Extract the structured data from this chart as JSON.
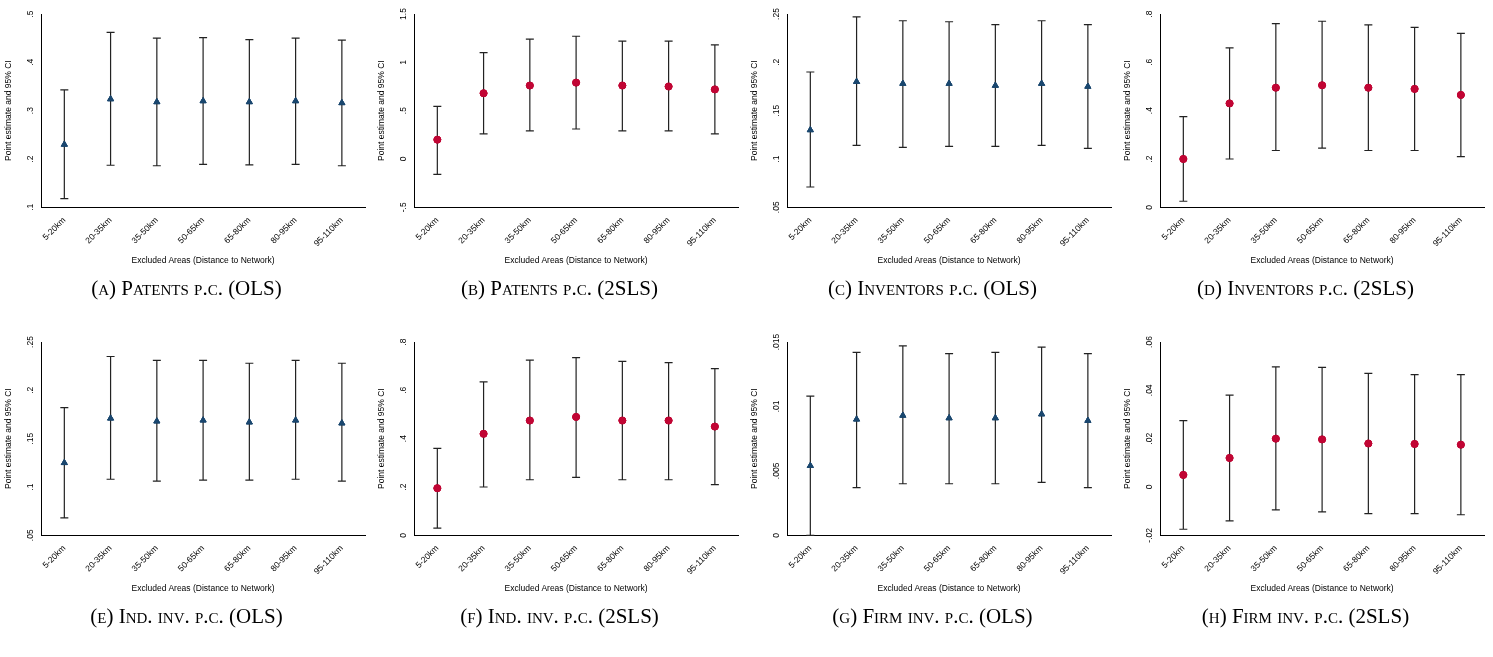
{
  "chart_data": [
    {
      "type": "scatter",
      "title": "(a) Patents p.c. (OLS)",
      "xlabel": "Excluded Areas (Distance to Network)",
      "ylabel": "Point estimate and 95% CI",
      "marker": "triangle",
      "color": "#1a476f",
      "categories": [
        "5-20km",
        "20-35km",
        "35-50km",
        "50-65km",
        "65-80km",
        "80-95km",
        "95-110km"
      ],
      "values": [
        0.23,
        0.324,
        0.318,
        0.32,
        0.318,
        0.32,
        0.316
      ],
      "errors": [
        [
          0.118,
          0.343
        ],
        [
          0.187,
          0.462
        ],
        [
          0.186,
          0.45
        ],
        [
          0.189,
          0.451
        ],
        [
          0.188,
          0.447
        ],
        [
          0.189,
          0.45
        ],
        [
          0.186,
          0.446
        ]
      ],
      "ylim": [
        0.1,
        0.5
      ],
      "yticks": [
        {
          "value": 0.1,
          "label": ".1"
        },
        {
          "value": 0.2,
          "label": ".2"
        },
        {
          "value": 0.3,
          "label": ".3"
        },
        {
          "value": 0.4,
          "label": ".4"
        },
        {
          "value": 0.5,
          "label": ".5"
        }
      ]
    },
    {
      "type": "scatter",
      "title": "(b) Patents p.c. (2SLS)",
      "xlabel": "Excluded Areas (Distance to Network)",
      "ylabel": "Point estimate and 95% CI",
      "marker": "circle",
      "color": "#c10534",
      "categories": [
        "5-20km",
        "20-35km",
        "35-50km",
        "50-65km",
        "65-80km",
        "80-95km",
        "95-110km"
      ],
      "values": [
        0.2,
        0.68,
        0.76,
        0.79,
        0.76,
        0.75,
        0.72
      ],
      "errors": [
        [
          -0.16,
          0.545
        ],
        [
          0.26,
          1.1
        ],
        [
          0.29,
          1.24
        ],
        [
          0.31,
          1.27
        ],
        [
          0.29,
          1.22
        ],
        [
          0.29,
          1.22
        ],
        [
          0.26,
          1.18
        ]
      ],
      "ylim": [
        -0.5,
        1.5
      ],
      "yticks": [
        {
          "value": -0.5,
          "label": "-.5"
        },
        0,
        {
          "value": 0.5,
          "label": ".5"
        },
        1,
        1.5
      ]
    },
    {
      "type": "scatter",
      "title": "(c) Inventors p.c. (OLS)",
      "xlabel": "Excluded Areas (Distance to Network)",
      "ylabel": "Point estimate and 95% CI",
      "marker": "triangle",
      "color": "#1a476f",
      "categories": [
        "5-20km",
        "20-35km",
        "35-50km",
        "50-65km",
        "65-80km",
        "80-95km",
        "95-110km"
      ],
      "values": [
        0.13,
        0.18,
        0.178,
        0.178,
        0.176,
        0.178,
        0.175
      ],
      "errors": [
        [
          0.071,
          0.19
        ],
        [
          0.114,
          0.247
        ],
        [
          0.112,
          0.243
        ],
        [
          0.113,
          0.242
        ],
        [
          0.113,
          0.239
        ],
        [
          0.114,
          0.243
        ],
        [
          0.111,
          0.239
        ]
      ],
      "ylim": [
        0.05,
        0.25
      ],
      "yticks": [
        {
          "value": 0.05,
          "label": ".05"
        },
        {
          "value": 0.1,
          "label": ".1"
        },
        {
          "value": 0.15,
          "label": ".15"
        },
        {
          "value": 0.2,
          "label": ".2"
        },
        {
          "value": 0.25,
          "label": ".25"
        }
      ]
    },
    {
      "type": "scatter",
      "title": "(d) Inventors p.c. (2SLS)",
      "xlabel": "Excluded Areas (Distance to Network)",
      "ylabel": "Point estimate and 95% CI",
      "marker": "circle",
      "color": "#c10534",
      "categories": [
        "5-20km",
        "20-35km",
        "35-50km",
        "50-65km",
        "65-80km",
        "80-95km",
        "95-110km"
      ],
      "values": [
        0.2,
        0.43,
        0.495,
        0.505,
        0.495,
        0.49,
        0.465
      ],
      "errors": [
        [
          0.025,
          0.375
        ],
        [
          0.2,
          0.66
        ],
        [
          0.235,
          0.76
        ],
        [
          0.245,
          0.77
        ],
        [
          0.235,
          0.755
        ],
        [
          0.235,
          0.745
        ],
        [
          0.21,
          0.72
        ]
      ],
      "ylim": [
        0,
        0.8
      ],
      "yticks": [
        0,
        {
          "value": 0.2,
          "label": ".2"
        },
        {
          "value": 0.4,
          "label": ".4"
        },
        {
          "value": 0.6,
          "label": ".6"
        },
        {
          "value": 0.8,
          "label": ".8"
        }
      ]
    },
    {
      "type": "scatter",
      "title": "(e) Ind. inv. p.c. (OLS)",
      "xlabel": "Excluded Areas (Distance to Network)",
      "ylabel": "Point estimate and 95% CI",
      "marker": "triangle",
      "color": "#1a476f",
      "categories": [
        "5-20km",
        "20-35km",
        "35-50km",
        "50-65km",
        "65-80km",
        "80-95km",
        "95-110km"
      ],
      "values": [
        0.125,
        0.171,
        0.168,
        0.169,
        0.167,
        0.169,
        0.166
      ],
      "errors": [
        [
          0.068,
          0.182
        ],
        [
          0.108,
          0.235
        ],
        [
          0.106,
          0.231
        ],
        [
          0.107,
          0.231
        ],
        [
          0.107,
          0.228
        ],
        [
          0.108,
          0.231
        ],
        [
          0.106,
          0.228
        ]
      ],
      "ylim": [
        0.05,
        0.25
      ],
      "yticks": [
        {
          "value": 0.05,
          "label": ".05"
        },
        {
          "value": 0.1,
          "label": ".1"
        },
        {
          "value": 0.15,
          "label": ".15"
        },
        {
          "value": 0.2,
          "label": ".2"
        },
        {
          "value": 0.25,
          "label": ".25"
        }
      ]
    },
    {
      "type": "scatter",
      "title": "(f) Ind. inv. p.c. (2SLS)",
      "xlabel": "Excluded Areas (Distance to Network)",
      "ylabel": "Point estimate and 95% CI",
      "marker": "circle",
      "color": "#c10534",
      "categories": [
        "5-20km",
        "20-35km",
        "35-50km",
        "50-65km",
        "65-80km",
        "80-95km",
        "95-110km"
      ],
      "values": [
        0.195,
        0.42,
        0.475,
        0.49,
        0.475,
        0.475,
        0.45
      ],
      "errors": [
        [
          0.03,
          0.36
        ],
        [
          0.2,
          0.635
        ],
        [
          0.23,
          0.725
        ],
        [
          0.24,
          0.735
        ],
        [
          0.23,
          0.72
        ],
        [
          0.23,
          0.715
        ],
        [
          0.21,
          0.69
        ]
      ],
      "ylim": [
        0,
        0.8
      ],
      "yticks": [
        0,
        {
          "value": 0.2,
          "label": ".2"
        },
        {
          "value": 0.4,
          "label": ".4"
        },
        {
          "value": 0.6,
          "label": ".6"
        },
        {
          "value": 0.8,
          "label": ".8"
        }
      ]
    },
    {
      "type": "scatter",
      "title": "(g) Firm inv. p.c. (OLS)",
      "xlabel": "Excluded Areas (Distance to Network)",
      "ylabel": "Point estimate and 95% CI",
      "marker": "triangle",
      "color": "#1a476f",
      "categories": [
        "5-20km",
        "20-35km",
        "35-50km",
        "50-65km",
        "65-80km",
        "80-95km",
        "95-110km"
      ],
      "values": [
        0.0054,
        0.009,
        0.0093,
        0.0091,
        0.0091,
        0.0094,
        0.0089
      ],
      "errors": [
        [
          0,
          0.0108
        ],
        [
          0.0037,
          0.0142
        ],
        [
          0.004,
          0.0147
        ],
        [
          0.004,
          0.0141
        ],
        [
          0.004,
          0.0142
        ],
        [
          0.0041,
          0.0146
        ],
        [
          0.0037,
          0.0141
        ]
      ],
      "ylim": [
        0,
        0.015
      ],
      "yticks": [
        0,
        {
          "value": 0.005,
          "label": ".005"
        },
        {
          "value": 0.01,
          "label": ".01"
        },
        {
          "value": 0.015,
          "label": ".015"
        }
      ]
    },
    {
      "type": "scatter",
      "title": "(h) Firm inv. p.c. (2SLS)",
      "xlabel": "Excluded Areas (Distance to Network)",
      "ylabel": "Point estimate and 95% CI",
      "marker": "circle",
      "color": "#c10534",
      "categories": [
        "5-20km",
        "20-35km",
        "35-50km",
        "50-65km",
        "65-80km",
        "80-95km",
        "95-110km"
      ],
      "values": [
        0.005,
        0.012,
        0.02,
        0.0197,
        0.018,
        0.0178,
        0.0175
      ],
      "errors": [
        [
          -0.0175,
          0.0275
        ],
        [
          -0.014,
          0.038
        ],
        [
          -0.0095,
          0.0497
        ],
        [
          -0.0103,
          0.0495
        ],
        [
          -0.011,
          0.047
        ],
        [
          -0.011,
          0.0465
        ],
        [
          -0.0115,
          0.0465
        ]
      ],
      "ylim": [
        -0.02,
        0.06
      ],
      "yticks": [
        {
          "value": -0.02,
          "label": "-.02"
        },
        {
          "value": 0,
          "label": "0"
        },
        {
          "value": 0.02,
          "label": ".02"
        },
        {
          "value": 0.04,
          "label": ".04"
        },
        {
          "value": 0.06,
          "label": ".06"
        }
      ]
    }
  ]
}
